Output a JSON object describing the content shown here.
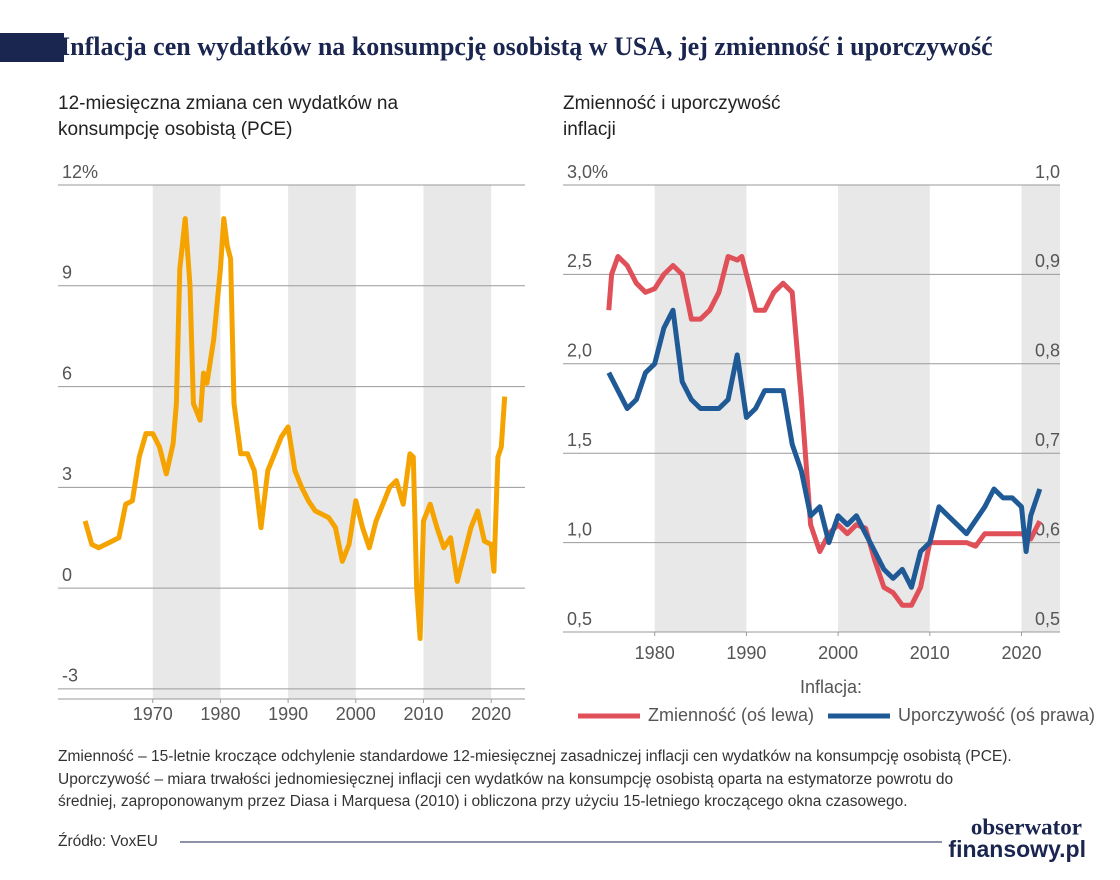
{
  "header": {
    "title": "Inflacja cen wydatków na konsumpcję osobistą w USA, jej zmienność i uporczywość"
  },
  "chart_data": [
    {
      "type": "line",
      "title": "12-miesięczna zmiana cen wydatków na",
      "title_line2": "konsumpcję osobistą (PCE)",
      "xlim": [
        1956,
        2025
      ],
      "xticks": [
        1970,
        1980,
        1990,
        2000,
        2010,
        2020
      ],
      "ylim": [
        -3.3,
        12
      ],
      "yticks": [
        {
          "value": 12,
          "label": "12%"
        },
        9,
        6,
        3,
        0,
        -3
      ],
      "grid": true,
      "shaded_spans": [
        [
          1970,
          1980
        ],
        [
          1990,
          2000
        ],
        [
          2010,
          2020
        ]
      ],
      "shade_color": "#e8e8e8",
      "series": [
        {
          "color": "#f5a300",
          "x": [
            1960,
            1961,
            1962,
            1963,
            1964,
            1965,
            1966,
            1967,
            1968,
            1969,
            1970,
            1971,
            1972,
            1973,
            1973.5,
            1974,
            1974.8,
            1975.5,
            1976,
            1977,
            1977.5,
            1978,
            1979,
            1980,
            1980.5,
            1981,
            1981.5,
            1982,
            1983,
            1984,
            1985,
            1986,
            1987,
            1988,
            1989,
            1990,
            1991,
            1992,
            1993,
            1994,
            1995,
            1996,
            1997,
            1998,
            1999,
            2000,
            2001,
            2002,
            2003,
            2004,
            2005,
            2006,
            2007,
            2008,
            2008.5,
            2009,
            2009.5,
            2010,
            2011,
            2012,
            2013,
            2014,
            2015,
            2016,
            2017,
            2018,
            2019,
            2020,
            2020.4,
            2021,
            2021.5,
            2022
          ],
          "values": [
            2.0,
            1.3,
            1.2,
            1.3,
            1.4,
            1.5,
            2.5,
            2.6,
            3.9,
            4.6,
            4.6,
            4.2,
            3.4,
            4.3,
            5.5,
            9.5,
            11,
            9,
            5.5,
            5.0,
            6.4,
            6.1,
            7.4,
            9.5,
            11,
            10.2,
            9.8,
            5.5,
            4.0,
            4.0,
            3.5,
            1.8,
            3.5,
            4.0,
            4.5,
            4.8,
            3.5,
            3.0,
            2.6,
            2.3,
            2.2,
            2.1,
            1.8,
            0.8,
            1.3,
            2.6,
            1.8,
            1.2,
            2.0,
            2.5,
            3.0,
            3.2,
            2.5,
            4.0,
            3.9,
            0,
            -1.5,
            2.0,
            2.5,
            1.8,
            1.2,
            1.5,
            0.2,
            1.0,
            1.8,
            2.3,
            1.4,
            1.3,
            0.5,
            3.9,
            4.2,
            5.7
          ]
        }
      ]
    },
    {
      "type": "line",
      "title": "Zmienność i uporczywość",
      "title_line2": "inflacji",
      "xlim": [
        1970,
        2024.2
      ],
      "xticks": [
        1980,
        1990,
        2000,
        2010,
        2020
      ],
      "ylim": [
        0.5,
        3.0
      ],
      "yticks": [
        {
          "value": 3,
          "label": "3,0%"
        },
        {
          "value": 2.5,
          "label": "2,5"
        },
        {
          "value": 2,
          "label": "2,0"
        },
        {
          "value": 1.5,
          "label": "1,5"
        },
        {
          "value": 1,
          "label": "1,0"
        },
        {
          "value": 0.5,
          "label": "0,5"
        }
      ],
      "y2lim": [
        0.5,
        1.0
      ],
      "y2ticks": [
        {
          "value": 1,
          "label": "1,0"
        },
        {
          "value": 0.9,
          "label": "0,9"
        },
        {
          "value": 0.8,
          "label": "0,8"
        },
        {
          "value": 0.7,
          "label": "0,7"
        },
        {
          "value": 0.6,
          "label": "0,6"
        },
        {
          "value": 0.5,
          "label": "0,5"
        }
      ],
      "grid": true,
      "shaded_spans": [
        [
          1980,
          1990
        ],
        [
          2000,
          2010
        ],
        [
          2020,
          2024.2
        ]
      ],
      "shade_color": "#e8e8e8",
      "legend_title": "Inflacja:",
      "legend": "bottom",
      "series": [
        {
          "name": "Zmienność (oś lewa)",
          "color": "#e05058",
          "x": [
            1975,
            1975.3,
            1976,
            1977,
            1978,
            1979,
            1980,
            1981,
            1982,
            1983,
            1984,
            1985,
            1986,
            1987,
            1988,
            1989,
            1989.5,
            1990,
            1991,
            1992,
            1993,
            1994,
            1995,
            1996,
            1997,
            1998,
            1999,
            2000,
            2001,
            2002,
            2003,
            2004,
            2005,
            2006,
            2007,
            2008,
            2009,
            2010,
            2012,
            2014,
            2015,
            2016,
            2018,
            2019,
            2020,
            2021,
            2022
          ],
          "values": [
            2.3,
            2.5,
            2.6,
            2.55,
            2.45,
            2.4,
            2.42,
            2.5,
            2.55,
            2.5,
            2.25,
            2.25,
            2.3,
            2.4,
            2.6,
            2.58,
            2.6,
            2.5,
            2.3,
            2.3,
            2.4,
            2.45,
            2.4,
            1.8,
            1.1,
            0.95,
            1.05,
            1.1,
            1.05,
            1.1,
            1.08,
            0.9,
            0.75,
            0.72,
            0.65,
            0.65,
            0.75,
            1.0,
            1.0,
            1.0,
            0.98,
            1.05,
            1.05,
            1.05,
            1.05,
            1.02,
            1.12
          ]
        },
        {
          "name": "Uporczywość (oś prawa)",
          "color": "#1f5a96",
          "axis": "y2",
          "x": [
            1975,
            1976,
            1977,
            1978,
            1979,
            1980,
            1981,
            1982,
            1983,
            1984,
            1985,
            1987,
            1988,
            1989,
            1990,
            1991,
            1992,
            1994,
            1995,
            1996,
            1997,
            1998,
            1999,
            2000,
            2001,
            2002,
            2003,
            2004,
            2005,
            2006,
            2007,
            2008,
            2009,
            2010,
            2011,
            2012,
            2013,
            2014,
            2016,
            2017,
            2018,
            2019,
            2020,
            2020.5,
            2021,
            2022
          ],
          "values": [
            0.79,
            0.77,
            0.75,
            0.76,
            0.79,
            0.8,
            0.84,
            0.86,
            0.78,
            0.76,
            0.75,
            0.75,
            0.76,
            0.81,
            0.74,
            0.75,
            0.77,
            0.77,
            0.71,
            0.68,
            0.63,
            0.64,
            0.6,
            0.63,
            0.62,
            0.63,
            0.61,
            0.59,
            0.57,
            0.56,
            0.57,
            0.55,
            0.59,
            0.6,
            0.64,
            0.63,
            0.62,
            0.61,
            0.64,
            0.66,
            0.65,
            0.65,
            0.64,
            0.59,
            0.63,
            0.66
          ]
        }
      ]
    }
  ],
  "notes": [
    "Zmienność – 15-letnie kroczące odchylenie standardowe 12-miesięcznej zasadniczej inflacji cen wydatków na konsumpcję osobistą (PCE).",
    "Uporczywość – miara trwałości jednomiesięcznej inflacji cen wydatków na konsumpcję osobistą oparta na estymatorze powrotu do",
    "średniej, zaproponowanym przez Diasa i Marquesa (2010) i obliczona przy użyciu 15-letniego kroczącego okna czasowego."
  ],
  "source": "Źródło: VoxEU",
  "brand": [
    "obserwator",
    "finansowy.pl"
  ]
}
